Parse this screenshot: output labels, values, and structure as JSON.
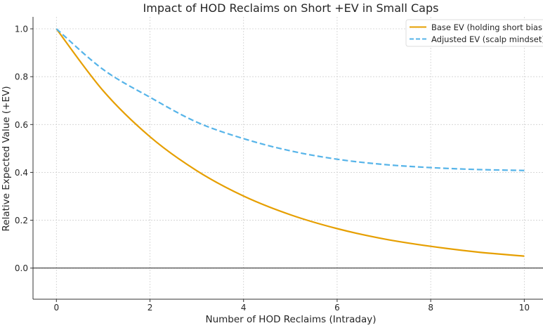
{
  "chart_data": {
    "type": "line",
    "title": "Impact of HOD Reclaims on Short +EV in Small Caps",
    "xlabel": "Number of HOD Reclaims (Intraday)",
    "ylabel": "Relative Expected Value (+EV)",
    "xlim": [
      -0.5,
      10.4
    ],
    "ylim": [
      -0.13,
      1.05
    ],
    "xticks": [
      0,
      2,
      4,
      6,
      8,
      10
    ],
    "xtick_labels": [
      "0",
      "2",
      "4",
      "6",
      "8",
      "10"
    ],
    "yticks": [
      0.0,
      0.2,
      0.4,
      0.6,
      0.8,
      1.0
    ],
    "ytick_labels": [
      "0.0",
      "0.2",
      "0.4",
      "0.6",
      "0.8",
      "1.0"
    ],
    "grid": true,
    "hline": 0,
    "legend_position": "top-right",
    "x": [
      0,
      1,
      2,
      3,
      4,
      5,
      6,
      7,
      8,
      9,
      10
    ],
    "series": [
      {
        "name": "Base EV (holding short bias)",
        "color": "#E69F00",
        "style": "solid",
        "values": [
          1.0,
          0.741,
          0.549,
          0.407,
          0.301,
          0.223,
          0.165,
          0.122,
          0.091,
          0.067,
          0.05
        ]
      },
      {
        "name": "Adjusted EV (scalp mindset)",
        "color": "#56B4E9",
        "style": "dashed",
        "values": [
          1.0,
          0.83,
          0.714,
          0.61,
          0.541,
          0.49,
          0.455,
          0.433,
          0.42,
          0.412,
          0.408
        ]
      }
    ]
  }
}
